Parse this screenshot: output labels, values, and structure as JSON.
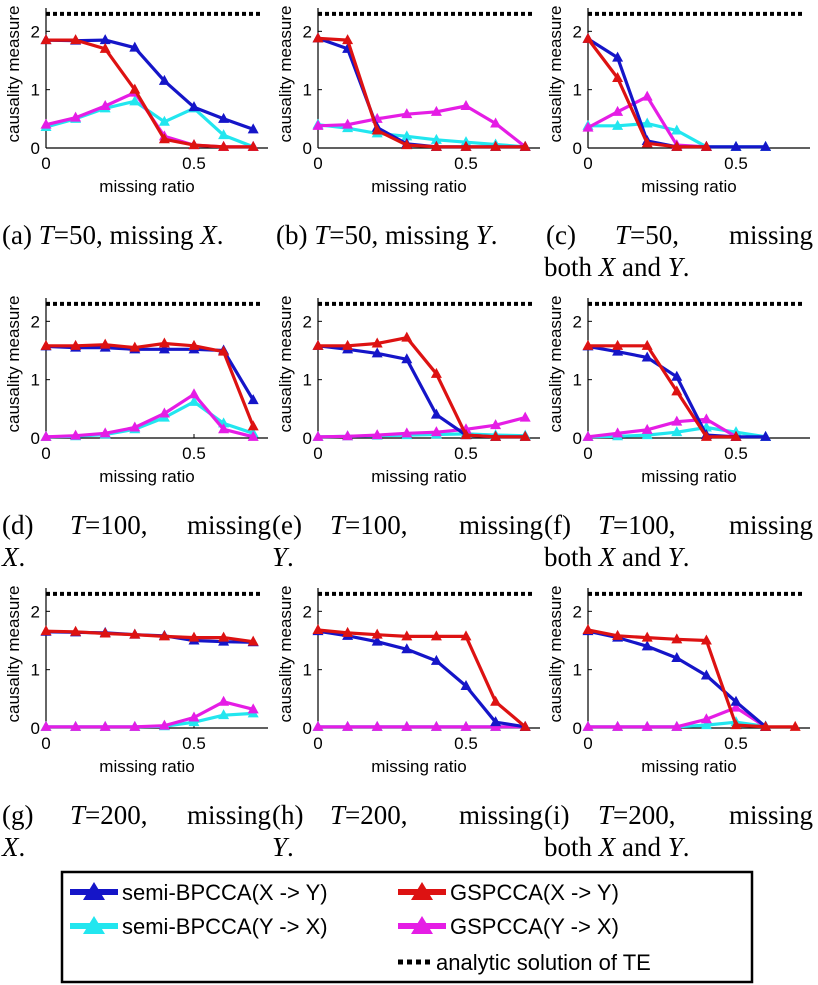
{
  "colors": {
    "semi_xy": "#1515c8",
    "semi_yx": "#22e6ef",
    "gs_xy": "#dd1212",
    "gs_yx": "#e51de5",
    "te": "#000000"
  },
  "chart_data": [
    {
      "type": "line",
      "caption": "(a) T=50, missing X.",
      "xlabel": "missing ratio",
      "ylabel": "causality measure",
      "xlim": [
        0,
        0.75
      ],
      "ylim": [
        0,
        2.4
      ],
      "xticks": [
        "0",
        "0.5"
      ],
      "yticks": [
        "0",
        "1",
        "2"
      ],
      "te": 2.3,
      "series": [
        {
          "name": "semi-BPCCA(X -> Y)",
          "x": [
            0,
            0.1,
            0.2,
            0.3,
            0.4,
            0.5,
            0.6,
            0.7
          ],
          "y": [
            1.85,
            1.84,
            1.85,
            1.72,
            1.15,
            0.7,
            0.5,
            0.32
          ]
        },
        {
          "name": "semi-BPCCA(Y -> X)",
          "x": [
            0,
            0.1,
            0.2,
            0.3,
            0.4,
            0.5,
            0.6,
            0.7
          ],
          "y": [
            0.36,
            0.5,
            0.68,
            0.8,
            0.45,
            0.68,
            0.22,
            0.02
          ]
        },
        {
          "name": "GSPCCA(X -> Y)",
          "x": [
            0,
            0.1,
            0.2,
            0.3,
            0.4,
            0.5,
            0.6,
            0.7
          ],
          "y": [
            1.85,
            1.85,
            1.7,
            1.0,
            0.15,
            0.05,
            0.02,
            0.02
          ]
        },
        {
          "name": "GSPCCA(Y -> X)",
          "x": [
            0,
            0.1,
            0.2,
            0.3,
            0.4,
            0.5,
            0.6,
            0.7
          ],
          "y": [
            0.4,
            0.52,
            0.72,
            0.95,
            0.2,
            0.05,
            0.02,
            0.02
          ]
        }
      ]
    },
    {
      "type": "line",
      "caption": "(b) T=50, missing Y.",
      "xlabel": "missing ratio",
      "ylabel": "causality measure",
      "xlim": [
        0,
        0.75
      ],
      "ylim": [
        0,
        2.4
      ],
      "xticks": [
        "0",
        "0.5"
      ],
      "yticks": [
        "0",
        "1",
        "2"
      ],
      "te": 2.3,
      "series": [
        {
          "name": "semi-BPCCA(X -> Y)",
          "x": [
            0,
            0.1,
            0.2,
            0.3,
            0.4,
            0.5,
            0.6,
            0.7
          ],
          "y": [
            1.88,
            1.7,
            0.35,
            0.07,
            0.02,
            0.02,
            0.02,
            0.02
          ]
        },
        {
          "name": "semi-BPCCA(Y -> X)",
          "x": [
            0,
            0.1,
            0.2,
            0.3,
            0.4,
            0.5,
            0.6,
            0.7
          ],
          "y": [
            0.4,
            0.34,
            0.25,
            0.2,
            0.14,
            0.1,
            0.06,
            0.02
          ]
        },
        {
          "name": "GSPCCA(X -> Y)",
          "x": [
            0,
            0.1,
            0.2,
            0.3,
            0.4,
            0.5,
            0.6,
            0.7
          ],
          "y": [
            1.88,
            1.85,
            0.3,
            0.05,
            0.02,
            0.02,
            0.02,
            0.02
          ]
        },
        {
          "name": "GSPCCA(Y -> X)",
          "x": [
            0,
            0.1,
            0.2,
            0.3,
            0.4,
            0.5,
            0.6,
            0.7
          ],
          "y": [
            0.38,
            0.4,
            0.5,
            0.58,
            0.62,
            0.72,
            0.42,
            0.02
          ]
        }
      ]
    },
    {
      "type": "line",
      "caption": "(c) T=50, missing both X and Y.",
      "xlabel": "missing ratio",
      "ylabel": "causality measure",
      "xlim": [
        0,
        0.75
      ],
      "ylim": [
        0,
        2.4
      ],
      "xticks": [
        "0",
        "0.5"
      ],
      "yticks": [
        "0",
        "1",
        "2"
      ],
      "te": 2.3,
      "series": [
        {
          "name": "semi-BPCCA(X -> Y)",
          "x": [
            0,
            0.1,
            0.2,
            0.3,
            0.4,
            0.5,
            0.6
          ],
          "y": [
            1.87,
            1.55,
            0.12,
            0.02,
            0.02,
            0.02,
            0.02
          ]
        },
        {
          "name": "semi-BPCCA(Y -> X)",
          "x": [
            0,
            0.1,
            0.2,
            0.3,
            0.4,
            0.5,
            0.6
          ],
          "y": [
            0.38,
            0.38,
            0.42,
            0.3,
            0.02,
            0.02,
            0.02
          ]
        },
        {
          "name": "GSPCCA(X -> Y)",
          "x": [
            0,
            0.1,
            0.2,
            0.3,
            0.4
          ],
          "y": [
            1.87,
            1.2,
            0.08,
            0.02,
            0.02
          ]
        },
        {
          "name": "GSPCCA(Y -> X)",
          "x": [
            0,
            0.1,
            0.2,
            0.3,
            0.4
          ],
          "y": [
            0.35,
            0.62,
            0.88,
            0.05,
            0.02
          ]
        }
      ]
    },
    {
      "type": "line",
      "caption": "(d) T=100, missing X.",
      "xlabel": "missing ratio",
      "ylabel": "causality measure",
      "xlim": [
        0,
        0.75
      ],
      "ylim": [
        0,
        2.4
      ],
      "xticks": [
        "0",
        "0.5"
      ],
      "yticks": [
        "0",
        "1",
        "2"
      ],
      "te": 2.3,
      "series": [
        {
          "name": "semi-BPCCA(X -> Y)",
          "x": [
            0,
            0.1,
            0.2,
            0.3,
            0.4,
            0.5,
            0.6,
            0.7
          ],
          "y": [
            1.57,
            1.55,
            1.55,
            1.52,
            1.52,
            1.52,
            1.5,
            0.65
          ]
        },
        {
          "name": "semi-BPCCA(Y -> X)",
          "x": [
            0,
            0.1,
            0.2,
            0.3,
            0.4,
            0.5,
            0.6,
            0.7
          ],
          "y": [
            0.02,
            0.03,
            0.06,
            0.15,
            0.35,
            0.62,
            0.25,
            0.08
          ]
        },
        {
          "name": "GSPCCA(X -> Y)",
          "x": [
            0,
            0.1,
            0.2,
            0.3,
            0.4,
            0.5,
            0.6,
            0.7
          ],
          "y": [
            1.58,
            1.58,
            1.6,
            1.55,
            1.62,
            1.58,
            1.48,
            0.2
          ]
        },
        {
          "name": "GSPCCA(Y -> X)",
          "x": [
            0,
            0.1,
            0.2,
            0.3,
            0.4,
            0.5,
            0.6,
            0.7
          ],
          "y": [
            0.02,
            0.04,
            0.08,
            0.18,
            0.42,
            0.75,
            0.15,
            0.02
          ]
        }
      ]
    },
    {
      "type": "line",
      "caption": "(e) T=100, missing Y.",
      "xlabel": "missing ratio",
      "ylabel": "causality measure",
      "xlim": [
        0,
        0.75
      ],
      "ylim": [
        0,
        2.4
      ],
      "xticks": [
        "0",
        "0.5"
      ],
      "yticks": [
        "0",
        "1",
        "2"
      ],
      "te": 2.3,
      "series": [
        {
          "name": "semi-BPCCA(X -> Y)",
          "x": [
            0,
            0.1,
            0.2,
            0.3,
            0.4,
            0.5,
            0.6,
            0.7
          ],
          "y": [
            1.58,
            1.52,
            1.45,
            1.35,
            0.4,
            0.05,
            0.02,
            0.02
          ]
        },
        {
          "name": "semi-BPCCA(Y -> X)",
          "x": [
            0,
            0.1,
            0.2,
            0.3,
            0.4,
            0.5,
            0.6,
            0.7
          ],
          "y": [
            0.02,
            0.03,
            0.04,
            0.05,
            0.06,
            0.07,
            0.05,
            0.04
          ]
        },
        {
          "name": "GSPCCA(X -> Y)",
          "x": [
            0,
            0.1,
            0.2,
            0.3,
            0.4,
            0.5,
            0.6,
            0.7
          ],
          "y": [
            1.58,
            1.58,
            1.62,
            1.72,
            1.1,
            0.05,
            0.02,
            0.02
          ]
        },
        {
          "name": "GSPCCA(Y -> X)",
          "x": [
            0,
            0.1,
            0.2,
            0.3,
            0.4,
            0.5,
            0.6,
            0.7
          ],
          "y": [
            0.02,
            0.03,
            0.05,
            0.08,
            0.1,
            0.15,
            0.22,
            0.35
          ]
        }
      ]
    },
    {
      "type": "line",
      "caption": "(f) T=100, missing both X and Y.",
      "xlabel": "missing ratio",
      "ylabel": "causality measure",
      "xlim": [
        0,
        0.75
      ],
      "ylim": [
        0,
        2.4
      ],
      "xticks": [
        "0",
        "0.5"
      ],
      "yticks": [
        "0",
        "1",
        "2"
      ],
      "te": 2.3,
      "series": [
        {
          "name": "semi-BPCCA(X -> Y)",
          "x": [
            0,
            0.1,
            0.2,
            0.3,
            0.4,
            0.5,
            0.6
          ],
          "y": [
            1.57,
            1.48,
            1.38,
            1.05,
            0.05,
            0.02,
            0.02
          ]
        },
        {
          "name": "semi-BPCCA(Y -> X)",
          "x": [
            0,
            0.1,
            0.2,
            0.3,
            0.4,
            0.5,
            0.6
          ],
          "y": [
            0.02,
            0.03,
            0.05,
            0.1,
            0.18,
            0.1,
            0.02
          ]
        },
        {
          "name": "GSPCCA(X -> Y)",
          "x": [
            0,
            0.1,
            0.2,
            0.3,
            0.4,
            0.5
          ],
          "y": [
            1.58,
            1.58,
            1.58,
            0.8,
            0.02,
            0.02
          ]
        },
        {
          "name": "GSPCCA(Y -> X)",
          "x": [
            0,
            0.1,
            0.2,
            0.3,
            0.4,
            0.5
          ],
          "y": [
            0.02,
            0.08,
            0.14,
            0.28,
            0.32,
            0.02
          ]
        }
      ]
    },
    {
      "type": "line",
      "caption": "(g) T=200, missing X.",
      "xlabel": "missing ratio",
      "ylabel": "causality measure",
      "xlim": [
        0,
        0.75
      ],
      "ylim": [
        0,
        2.4
      ],
      "xticks": [
        "0",
        "0.5"
      ],
      "yticks": [
        "0",
        "1",
        "2"
      ],
      "te": 2.3,
      "series": [
        {
          "name": "semi-BPCCA(X -> Y)",
          "x": [
            0,
            0.1,
            0.2,
            0.3,
            0.4,
            0.5,
            0.6,
            0.7
          ],
          "y": [
            1.65,
            1.64,
            1.63,
            1.6,
            1.58,
            1.5,
            1.48,
            1.47
          ]
        },
        {
          "name": "semi-BPCCA(Y -> X)",
          "x": [
            0,
            0.1,
            0.2,
            0.3,
            0.4,
            0.5,
            0.6,
            0.7
          ],
          "y": [
            0.02,
            0.02,
            0.02,
            0.02,
            0.03,
            0.1,
            0.22,
            0.25
          ]
        },
        {
          "name": "GSPCCA(X -> Y)",
          "x": [
            0,
            0.1,
            0.2,
            0.3,
            0.4,
            0.5,
            0.6,
            0.7
          ],
          "y": [
            1.66,
            1.65,
            1.62,
            1.6,
            1.57,
            1.55,
            1.55,
            1.48
          ]
        },
        {
          "name": "GSPCCA(Y -> X)",
          "x": [
            0,
            0.1,
            0.2,
            0.3,
            0.4,
            0.5,
            0.6,
            0.7
          ],
          "y": [
            0.02,
            0.02,
            0.02,
            0.02,
            0.04,
            0.18,
            0.45,
            0.32
          ]
        }
      ]
    },
    {
      "type": "line",
      "caption": "(h) T=200, missing Y.",
      "xlabel": "missing ratio",
      "ylabel": "causality measure",
      "xlim": [
        0,
        0.75
      ],
      "ylim": [
        0,
        2.4
      ],
      "xticks": [
        "0",
        "0.5"
      ],
      "yticks": [
        "0",
        "1",
        "2"
      ],
      "te": 2.3,
      "series": [
        {
          "name": "semi-BPCCA(X -> Y)",
          "x": [
            0,
            0.1,
            0.2,
            0.3,
            0.4,
            0.5,
            0.6,
            0.7
          ],
          "y": [
            1.66,
            1.58,
            1.48,
            1.35,
            1.15,
            0.72,
            0.1,
            0.02
          ]
        },
        {
          "name": "semi-BPCCA(Y -> X)",
          "x": [
            0,
            0.1,
            0.2,
            0.3,
            0.4,
            0.5,
            0.6,
            0.7
          ],
          "y": [
            0.02,
            0.02,
            0.02,
            0.02,
            0.02,
            0.02,
            0.02,
            0.02
          ]
        },
        {
          "name": "GSPCCA(X -> Y)",
          "x": [
            0,
            0.1,
            0.2,
            0.3,
            0.4,
            0.5,
            0.6,
            0.7
          ],
          "y": [
            1.68,
            1.63,
            1.6,
            1.57,
            1.57,
            1.57,
            0.45,
            0.02
          ]
        },
        {
          "name": "GSPCCA(Y -> X)",
          "x": [
            0,
            0.1,
            0.2,
            0.3,
            0.4,
            0.5,
            0.6,
            0.7
          ],
          "y": [
            0.02,
            0.02,
            0.02,
            0.02,
            0.02,
            0.02,
            0.02,
            0.02
          ]
        }
      ]
    },
    {
      "type": "line",
      "caption": "(i) T=200, missing both X and Y.",
      "xlabel": "missing ratio",
      "ylabel": "causality measure",
      "xlim": [
        0,
        0.75
      ],
      "ylim": [
        0,
        2.4
      ],
      "xticks": [
        "0",
        "0.5"
      ],
      "yticks": [
        "0",
        "1",
        "2"
      ],
      "te": 2.3,
      "series": [
        {
          "name": "semi-BPCCA(X -> Y)",
          "x": [
            0,
            0.1,
            0.2,
            0.3,
            0.4,
            0.5,
            0.6
          ],
          "y": [
            1.66,
            1.55,
            1.4,
            1.2,
            0.9,
            0.45,
            0.02
          ]
        },
        {
          "name": "semi-BPCCA(Y -> X)",
          "x": [
            0,
            0.1,
            0.2,
            0.3,
            0.4,
            0.5,
            0.6
          ],
          "y": [
            0.02,
            0.02,
            0.02,
            0.02,
            0.05,
            0.1,
            0.03
          ]
        },
        {
          "name": "GSPCCA(X -> Y)",
          "x": [
            0,
            0.1,
            0.2,
            0.3,
            0.4,
            0.5,
            0.6,
            0.7
          ],
          "y": [
            1.68,
            1.58,
            1.55,
            1.52,
            1.5,
            0.05,
            0.02,
            0.02
          ]
        },
        {
          "name": "GSPCCA(Y -> X)",
          "x": [
            0,
            0.1,
            0.2,
            0.3,
            0.4,
            0.5,
            0.6
          ],
          "y": [
            0.02,
            0.02,
            0.02,
            0.02,
            0.15,
            0.35,
            0.02
          ]
        }
      ]
    }
  ],
  "captions": {
    "a": {
      "label": "(a)",
      "t": "T",
      "teq": "=50, missing",
      "var": "X",
      "end": "."
    },
    "b": {
      "label": "(b)",
      "t": "T",
      "teq": "=50, missing",
      "var": "Y",
      "end": "."
    },
    "c": {
      "label": "(c)",
      "t": "T",
      "teq": "=50,",
      "missing": "missing",
      "both": "both",
      "x": "X",
      "and": "and",
      "y": "Y",
      "end": "."
    },
    "d": {
      "label": "(d)",
      "t": "T",
      "teq": "=100,",
      "missing": "missing",
      "var": "X",
      "end": "."
    },
    "e": {
      "label": "(e)",
      "t": "T",
      "teq": "=100,",
      "missing": "missing",
      "var": "Y",
      "end": "."
    },
    "f": {
      "label": "(f)",
      "t": "T",
      "teq": "=100,",
      "missing": "missing",
      "both": "both",
      "x": "X",
      "and": "and",
      "y": "Y",
      "end": "."
    },
    "g": {
      "label": "(g)",
      "t": "T",
      "teq": "=200,",
      "missing": "missing",
      "var": "X",
      "end": "."
    },
    "h": {
      "label": "(h)",
      "t": "T",
      "teq": "=200,",
      "missing": "missing",
      "var": "Y",
      "end": "."
    },
    "i": {
      "label": "(i)",
      "t": "T",
      "teq": "=200,",
      "missing": "missing",
      "both": "both",
      "x": "X",
      "and": "and",
      "y": "Y",
      "end": "."
    }
  },
  "legend": {
    "semi_xy": "semi-BPCCA(X -> Y)",
    "semi_yx": "semi-BPCCA(Y -> X)",
    "gs_xy": "GSPCCA(X -> Y)",
    "gs_yx": "GSPCCA(Y -> X)",
    "te": "analytic solution of TE"
  }
}
